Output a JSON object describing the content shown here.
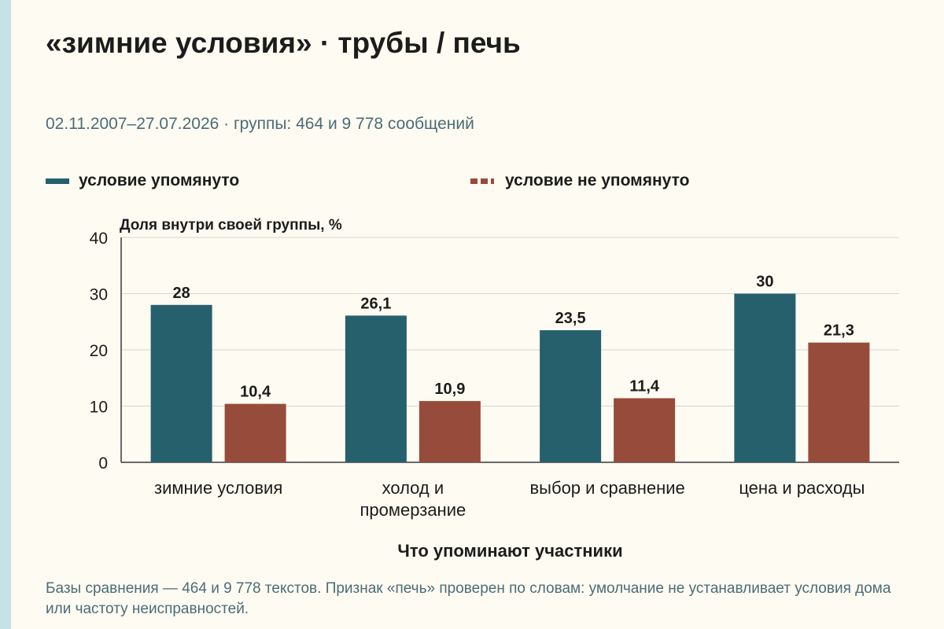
{
  "title": "«зимние условия» · трубы / печь",
  "subtitle": "02.11.2007–27.07.2026 · группы: 464 и 9 778 сообщений",
  "legend": {
    "mentioned": "условие упомянуто",
    "not_mentioned": "условие не упомянуто"
  },
  "colors": {
    "mentioned": "#27606d",
    "not_mentioned": "#974c3b",
    "background": "#fdfbf2"
  },
  "chart_data": {
    "type": "bar",
    "ylabel": "Доля внутри своей группы, %",
    "xlabel": "Что упоминают участники",
    "ylim": [
      0,
      40
    ],
    "yticks": [
      0,
      10,
      20,
      30,
      40
    ],
    "grid": true,
    "legend_position": "top",
    "categories": [
      [
        "зимние условия"
      ],
      [
        "холод и",
        "промерзание"
      ],
      [
        "выбор и сравнение"
      ],
      [
        "цена и расходы"
      ]
    ],
    "series": [
      {
        "name": "условие упомянуто",
        "values": [
          28,
          26.1,
          23.5,
          30
        ],
        "labels": [
          "28",
          "26,1",
          "23,5",
          "30"
        ]
      },
      {
        "name": "условие не упомянуто",
        "values": [
          10.4,
          10.9,
          11.4,
          21.3
        ],
        "labels": [
          "10,4",
          "10,9",
          "11,4",
          "21,3"
        ]
      }
    ]
  },
  "footnote": "Базы сравнения — 464 и 9 778 текстов. Признак «печь» проверен по словам: умолчание не устанавливает условия дома или частоту неисправностей."
}
